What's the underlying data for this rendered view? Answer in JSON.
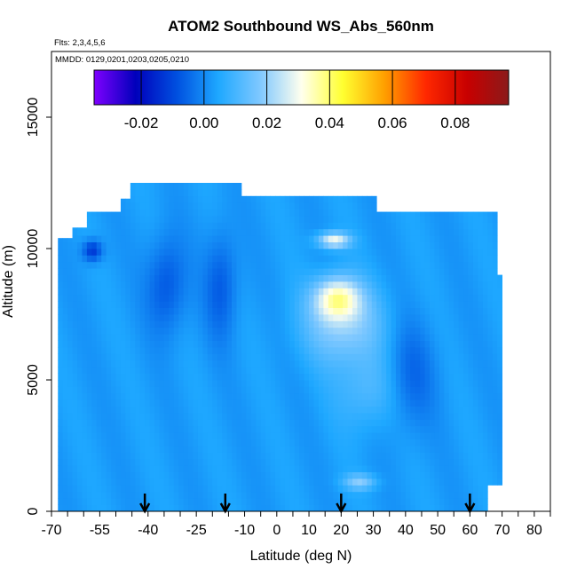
{
  "chart_data": {
    "type": "heatmap",
    "title": "ATOM2 Southbound WS_Abs_560nm",
    "subtitle_flights": "Flts: 2,3,4,5,6",
    "subtitle_dates": "MMDD: 0129,0201,0203,0205,0210",
    "xlabel": "Latitude (deg N)",
    "ylabel": "Altitude (m)",
    "xlim": [
      -70,
      85
    ],
    "ylim": [
      0,
      17500
    ],
    "x_ticks": [
      -70,
      -55,
      -40,
      -25,
      -10,
      0,
      10,
      20,
      30,
      40,
      50,
      60,
      70,
      80
    ],
    "y_ticks": [
      0,
      5000,
      10000,
      15000
    ],
    "colorbar": {
      "range": [
        -0.035,
        0.097
      ],
      "ticks": [
        -0.02,
        0.0,
        0.02,
        0.04,
        0.06,
        0.08
      ],
      "tick_labels": [
        "-0.02",
        "0.00",
        "0.02",
        "0.04",
        "0.06",
        "0.08"
      ],
      "colors": [
        "#7f00ff",
        "#0000bb",
        "#0050e0",
        "#1ea8ff",
        "#7fc8ff",
        "#ffffee",
        "#ffff30",
        "#ffa000",
        "#ff2800",
        "#c80000",
        "#8b1a1a"
      ]
    },
    "coverage_envelope": [
      [
        -68,
        0,
        10400
      ],
      [
        -65,
        0,
        10800
      ],
      [
        -60,
        0,
        11400
      ],
      [
        -50,
        0,
        11900
      ],
      [
        -47,
        0,
        12500
      ],
      [
        -20,
        0,
        12500
      ],
      [
        -12,
        0,
        12000
      ],
      [
        0,
        0,
        12000
      ],
      [
        10,
        0,
        12000
      ],
      [
        20,
        0,
        12000
      ],
      [
        30,
        0,
        11400
      ],
      [
        40,
        0,
        11400
      ],
      [
        50,
        0,
        11400
      ],
      [
        58,
        0,
        11400
      ],
      [
        64,
        1000,
        11400
      ],
      [
        68,
        1000,
        9000
      ],
      [
        70,
        1000,
        6000
      ]
    ],
    "background_value": 0.003,
    "features": [
      {
        "lat": -58,
        "alt": 9800,
        "value": -0.014,
        "dlat": 3,
        "dalt": 400
      },
      {
        "lat": -35,
        "alt": 8500,
        "value": -0.008,
        "dlat": 6,
        "dalt": 1800
      },
      {
        "lat": -18,
        "alt": 8500,
        "value": -0.007,
        "dlat": 5,
        "dalt": 2000
      },
      {
        "lat": 18,
        "alt": 8000,
        "value": 0.03,
        "dlat": 7,
        "dalt": 800
      },
      {
        "lat": 17,
        "alt": 10200,
        "value": 0.03,
        "dlat": 5,
        "dalt": 300
      },
      {
        "lat": 20,
        "alt": 7000,
        "value": 0.02,
        "dlat": 12,
        "dalt": 1500
      },
      {
        "lat": 28,
        "alt": 4500,
        "value": 0.012,
        "dlat": 10,
        "dalt": 1500
      },
      {
        "lat": 25,
        "alt": 1000,
        "value": 0.018,
        "dlat": 5,
        "dalt": 300
      },
      {
        "lat": 40,
        "alt": 5000,
        "value": -0.006,
        "dlat": 8,
        "dalt": 2000
      }
    ],
    "arrows_latitude": [
      -41,
      -16,
      20,
      60
    ]
  }
}
